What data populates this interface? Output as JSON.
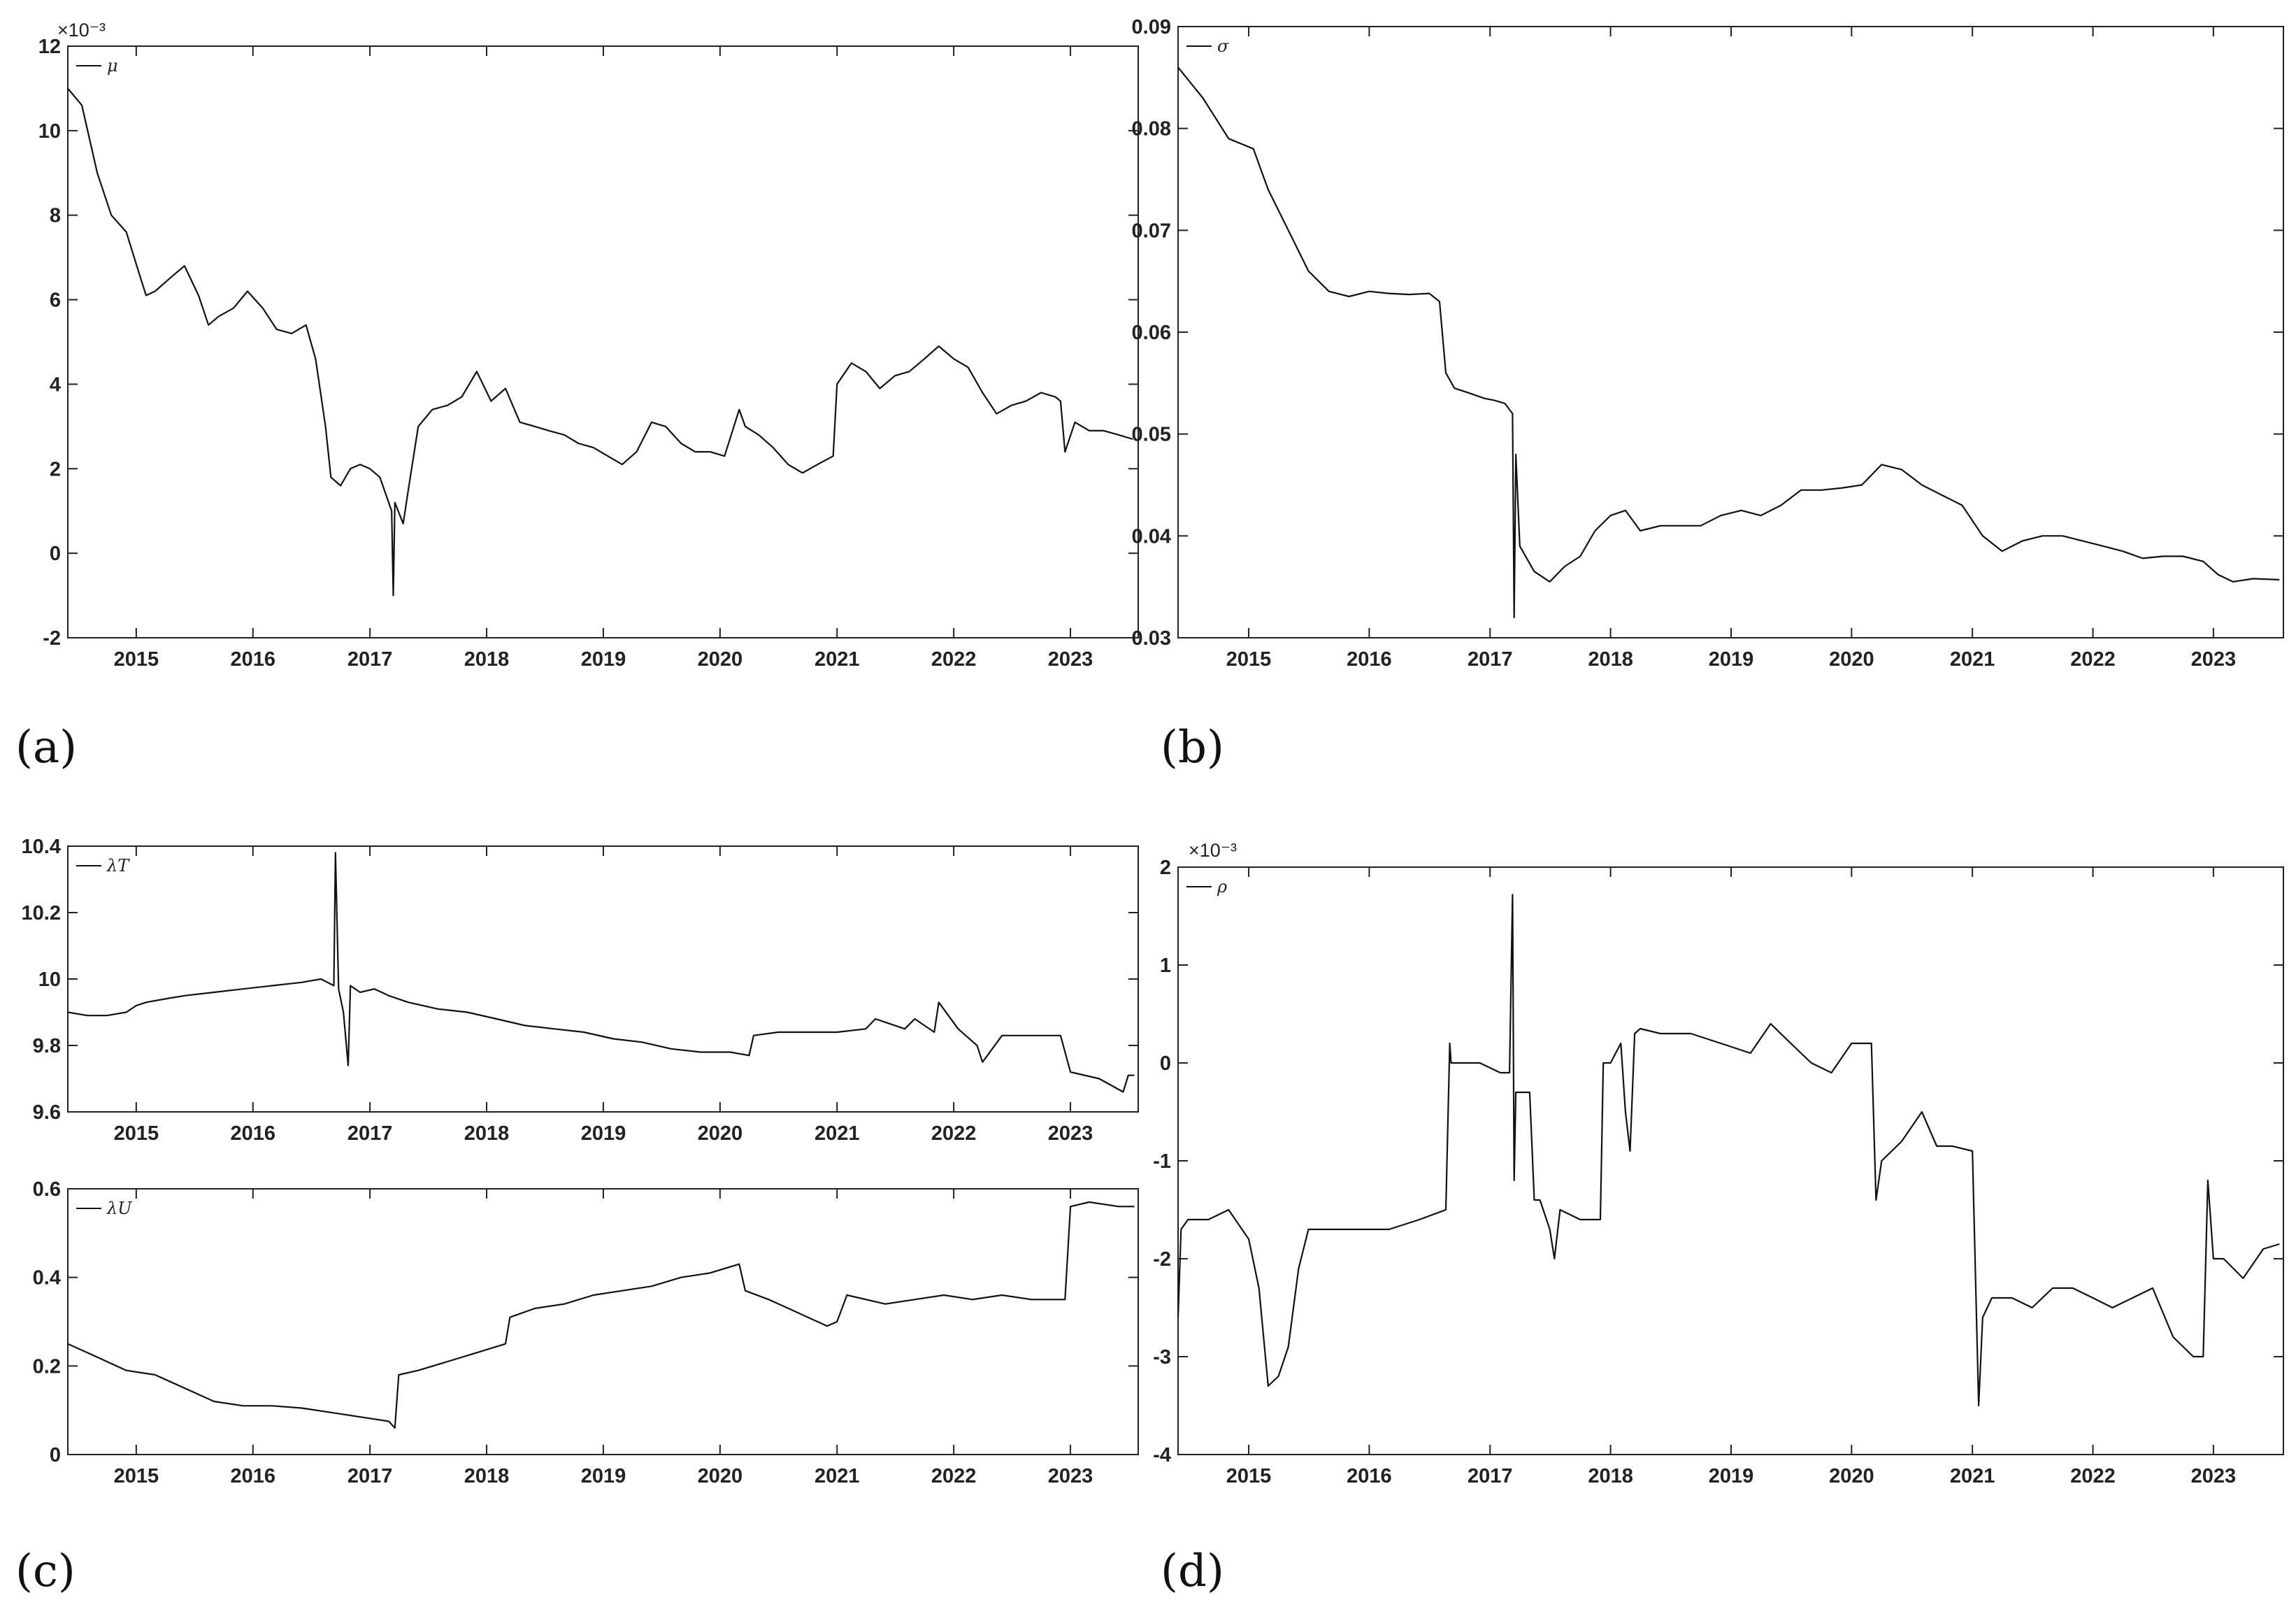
{
  "chart_data": [
    {
      "type": "line",
      "panel_label": "(a)",
      "exponent_label": "×10⁻³",
      "legend": "μ",
      "xlim": [
        "2014-06-01",
        "2023-08-01"
      ],
      "ylim": [
        -2,
        12
      ],
      "y_ticks": [
        "-2",
        "0",
        "2",
        "4",
        "6",
        "8",
        "10",
        "12"
      ],
      "x_ticks": [
        "2015",
        "2016",
        "2017",
        "2018",
        "2019",
        "2020",
        "2021",
        "2022",
        "2023"
      ],
      "series": [
        {
          "x": [
            "2014-06-01",
            "2014-07-15",
            "2014-09-01",
            "2014-10-15",
            "2014-12-01",
            "2015-01-15",
            "2015-02-01",
            "2015-03-01",
            "2015-04-15",
            "2015-06-01",
            "2015-07-15",
            "2015-08-15",
            "2015-09-15",
            "2015-11-01",
            "2015-12-15",
            "2016-02-01",
            "2016-03-15",
            "2016-05-01",
            "2016-06-15",
            "2016-07-15",
            "2016-08-15",
            "2016-09-01",
            "2016-10-01",
            "2016-11-01",
            "2016-12-01",
            "2017-01-01",
            "2017-02-01",
            "2017-03-10",
            "2017-03-15",
            "2017-03-20",
            "2017-04-15",
            "2017-05-01",
            "2017-06-01",
            "2017-07-15",
            "2017-09-01",
            "2017-10-15",
            "2017-12-01",
            "2018-01-15",
            "2018-03-01",
            "2018-04-15",
            "2018-06-01",
            "2018-07-15",
            "2018-09-01",
            "2018-10-15",
            "2018-12-01",
            "2019-01-15",
            "2019-03-01",
            "2019-04-15",
            "2019-06-01",
            "2019-07-15",
            "2019-09-01",
            "2019-10-15",
            "2019-12-01",
            "2020-01-15",
            "2020-03-01",
            "2020-03-20",
            "2020-05-01",
            "2020-06-15",
            "2020-08-01",
            "2020-09-15",
            "2020-11-01",
            "2020-12-20",
            "2021-01-01",
            "2021-02-15",
            "2021-04-01",
            "2021-05-15",
            "2021-07-01",
            "2021-08-15",
            "2021-10-01",
            "2021-11-15",
            "2022-01-01",
            "2022-02-15",
            "2022-04-01",
            "2022-05-15",
            "2022-07-01",
            "2022-08-15",
            "2022-10-01",
            "2022-11-15",
            "2022-12-01",
            "2022-12-15",
            "2023-01-15",
            "2023-03-01",
            "2023-04-15",
            "2023-06-01",
            "2023-07-15"
          ],
          "y": [
            11.0,
            10.6,
            9.0,
            8.0,
            7.6,
            6.5,
            6.1,
            6.2,
            6.5,
            6.8,
            6.1,
            5.4,
            5.6,
            5.8,
            6.2,
            5.8,
            5.3,
            5.2,
            5.4,
            4.6,
            3.0,
            1.8,
            1.6,
            2.0,
            2.1,
            2.0,
            1.8,
            1.0,
            -1.0,
            1.2,
            0.7,
            1.5,
            3.0,
            3.4,
            3.5,
            3.7,
            4.3,
            3.6,
            3.9,
            3.1,
            3.0,
            2.9,
            2.8,
            2.6,
            2.5,
            2.3,
            2.1,
            2.4,
            3.1,
            3.0,
            2.6,
            2.4,
            2.4,
            2.3,
            3.4,
            3.0,
            2.8,
            2.5,
            2.1,
            1.9,
            2.1,
            2.3,
            4.0,
            4.5,
            4.3,
            3.9,
            4.2,
            4.3,
            4.6,
            4.9,
            4.6,
            4.4,
            3.8,
            3.3,
            3.5,
            3.6,
            3.8,
            3.7,
            3.6,
            2.4,
            3.1,
            2.9,
            2.9,
            2.8,
            2.7
          ]
        }
      ]
    },
    {
      "type": "line",
      "panel_label": "(b)",
      "legend": "σ",
      "xlim": [
        "2014-06-01",
        "2023-08-01"
      ],
      "ylim": [
        0.03,
        0.09
      ],
      "y_ticks": [
        "0.03",
        "0.04",
        "0.05",
        "0.06",
        "0.07",
        "0.08",
        "0.09"
      ],
      "x_ticks": [
        "2015",
        "2016",
        "2017",
        "2018",
        "2019",
        "2020",
        "2021",
        "2022",
        "2023"
      ],
      "series": [
        {
          "x": [
            "2014-06-01",
            "2014-08-15",
            "2014-11-01",
            "2015-01-15",
            "2015-03-01",
            "2015-05-01",
            "2015-07-01",
            "2015-09-01",
            "2015-11-01",
            "2016-01-01",
            "2016-03-01",
            "2016-05-01",
            "2016-07-01",
            "2016-08-01",
            "2016-08-20",
            "2016-09-15",
            "2016-11-01",
            "2016-12-15",
            "2017-01-15",
            "2017-02-15",
            "2017-03-10",
            "2017-03-15",
            "2017-03-20",
            "2017-04-01",
            "2017-05-15",
            "2017-07-01",
            "2017-08-15",
            "2017-10-01",
            "2017-11-15",
            "2018-01-01",
            "2018-02-15",
            "2018-04-01",
            "2018-06-01",
            "2018-08-01",
            "2018-10-01",
            "2018-12-01",
            "2019-02-01",
            "2019-04-01",
            "2019-06-01",
            "2019-08-01",
            "2019-10-01",
            "2019-12-01",
            "2020-02-01",
            "2020-04-01",
            "2020-06-01",
            "2020-08-01",
            "2020-10-01",
            "2020-12-01",
            "2021-02-01",
            "2021-04-01",
            "2021-06-01",
            "2021-08-01",
            "2021-10-01",
            "2021-12-01",
            "2022-02-01",
            "2022-04-01",
            "2022-06-01",
            "2022-08-01",
            "2022-10-01",
            "2022-12-01",
            "2023-01-15",
            "2023-03-01",
            "2023-05-01",
            "2023-07-20"
          ],
          "y": [
            0.086,
            0.083,
            0.079,
            0.078,
            0.074,
            0.07,
            0.066,
            0.064,
            0.0635,
            0.064,
            0.0638,
            0.0637,
            0.0638,
            0.063,
            0.056,
            0.0545,
            0.054,
            0.0535,
            0.0533,
            0.053,
            0.052,
            0.032,
            0.048,
            0.039,
            0.0365,
            0.0355,
            0.037,
            0.038,
            0.0405,
            0.042,
            0.0425,
            0.0405,
            0.041,
            0.041,
            0.041,
            0.042,
            0.0425,
            0.042,
            0.043,
            0.0445,
            0.0445,
            0.0447,
            0.045,
            0.047,
            0.0465,
            0.045,
            0.044,
            0.043,
            0.04,
            0.0385,
            0.0395,
            0.04,
            0.04,
            0.0395,
            0.039,
            0.0385,
            0.0378,
            0.038,
            0.038,
            0.0375,
            0.0362,
            0.0355,
            0.0358,
            0.0357
          ]
        }
      ]
    },
    {
      "type": "line",
      "panel_label": "(c)",
      "legend": "λT",
      "xlim": [
        "2014-06-01",
        "2023-08-01"
      ],
      "ylim": [
        9.6,
        10.4
      ],
      "y_ticks": [
        "9.6",
        "9.8",
        "10",
        "10.2",
        "10.4"
      ],
      "x_ticks": [
        "2015",
        "2016",
        "2017",
        "2018",
        "2019",
        "2020",
        "2021",
        "2022",
        "2023"
      ],
      "series": [
        {
          "x": [
            "2014-06-01",
            "2014-08-01",
            "2014-10-01",
            "2014-12-01",
            "2015-01-01",
            "2015-02-01",
            "2015-04-01",
            "2015-06-01",
            "2015-09-01",
            "2015-12-01",
            "2016-03-01",
            "2016-06-01",
            "2016-08-01",
            "2016-09-10",
            "2016-09-15",
            "2016-09-25",
            "2016-10-10",
            "2016-10-25",
            "2016-11-01",
            "2016-12-01",
            "2017-01-15",
            "2017-03-01",
            "2017-05-01",
            "2017-08-01",
            "2017-11-01",
            "2018-02-01",
            "2018-05-01",
            "2018-08-01",
            "2018-11-01",
            "2019-02-01",
            "2019-05-01",
            "2019-08-01",
            "2019-11-01",
            "2020-02-01",
            "2020-04-01",
            "2020-04-15",
            "2020-07-01",
            "2020-10-01",
            "2021-01-01",
            "2021-04-01",
            "2021-05-01",
            "2021-08-01",
            "2021-09-01",
            "2021-11-01",
            "2021-11-15",
            "2022-01-15",
            "2022-03-15",
            "2022-04-01",
            "2022-06-01",
            "2022-09-01",
            "2022-12-01",
            "2023-01-01",
            "2023-04-01",
            "2023-06-15",
            "2023-07-01",
            "2023-07-20"
          ],
          "y": [
            9.9,
            9.89,
            9.89,
            9.9,
            9.92,
            9.93,
            9.94,
            9.95,
            9.96,
            9.97,
            9.98,
            9.99,
            10.0,
            9.98,
            10.38,
            9.97,
            9.9,
            9.74,
            9.98,
            9.96,
            9.97,
            9.95,
            9.93,
            9.91,
            9.9,
            9.88,
            9.86,
            9.85,
            9.84,
            9.82,
            9.81,
            9.79,
            9.78,
            9.78,
            9.77,
            9.83,
            9.84,
            9.84,
            9.84,
            9.85,
            9.88,
            9.85,
            9.88,
            9.84,
            9.93,
            9.85,
            9.8,
            9.75,
            9.83,
            9.83,
            9.83,
            9.72,
            9.7,
            9.66,
            9.71,
            9.71
          ]
        }
      ]
    },
    {
      "type": "line",
      "panel_label": "(c)",
      "legend": "λU",
      "xlim": [
        "2014-06-01",
        "2023-08-01"
      ],
      "ylim": [
        0,
        0.6
      ],
      "y_ticks": [
        "0",
        "0.2",
        "0.4",
        "0.6"
      ],
      "x_ticks": [
        "2015",
        "2016",
        "2017",
        "2018",
        "2019",
        "2020",
        "2021",
        "2022",
        "2023"
      ],
      "series": [
        {
          "x": [
            "2014-06-01",
            "2014-09-01",
            "2014-12-01",
            "2015-03-01",
            "2015-06-01",
            "2015-09-01",
            "2015-12-01",
            "2016-03-01",
            "2016-06-01",
            "2016-09-01",
            "2016-12-01",
            "2017-03-01",
            "2017-03-20",
            "2017-04-01",
            "2017-06-01",
            "2017-09-01",
            "2017-12-01",
            "2018-03-01",
            "2018-03-15",
            "2018-06-01",
            "2018-09-01",
            "2018-12-01",
            "2019-03-01",
            "2019-06-01",
            "2019-09-01",
            "2019-12-01",
            "2020-03-01",
            "2020-03-20",
            "2020-06-01",
            "2020-09-01",
            "2020-12-01",
            "2021-01-01",
            "2021-02-01",
            "2021-06-01",
            "2021-09-01",
            "2021-12-01",
            "2022-03-01",
            "2022-06-01",
            "2022-09-01",
            "2022-12-01",
            "2022-12-15",
            "2023-01-01",
            "2023-03-01",
            "2023-06-01",
            "2023-07-20"
          ],
          "y": [
            0.25,
            0.22,
            0.19,
            0.18,
            0.15,
            0.12,
            0.11,
            0.11,
            0.105,
            0.095,
            0.085,
            0.075,
            0.06,
            0.18,
            0.19,
            0.21,
            0.23,
            0.25,
            0.31,
            0.33,
            0.34,
            0.36,
            0.37,
            0.38,
            0.4,
            0.41,
            0.43,
            0.37,
            0.35,
            0.32,
            0.29,
            0.3,
            0.36,
            0.34,
            0.35,
            0.36,
            0.35,
            0.36,
            0.35,
            0.35,
            0.35,
            0.56,
            0.57,
            0.56,
            0.56
          ]
        }
      ]
    },
    {
      "type": "line",
      "panel_label": "(d)",
      "exponent_label": "×10⁻³",
      "legend": "ρ",
      "xlim": [
        "2014-06-01",
        "2023-08-01"
      ],
      "ylim": [
        -4,
        2
      ],
      "y_ticks": [
        "-4",
        "-3",
        "-2",
        "-1",
        "0",
        "1",
        "2"
      ],
      "x_ticks": [
        "2015",
        "2016",
        "2017",
        "2018",
        "2019",
        "2020",
        "2021",
        "2022",
        "2023"
      ],
      "series": [
        {
          "x": [
            "2014-06-01",
            "2014-06-10",
            "2014-07-01",
            "2014-09-01",
            "2014-11-01",
            "2015-01-01",
            "2015-02-01",
            "2015-03-01",
            "2015-04-01",
            "2015-05-01",
            "2015-06-01",
            "2015-07-01",
            "2015-09-01",
            "2015-12-01",
            "2016-03-01",
            "2016-06-01",
            "2016-08-20",
            "2016-09-01",
            "2016-09-05",
            "2016-10-01",
            "2016-12-01",
            "2017-02-01",
            "2017-03-01",
            "2017-03-10",
            "2017-03-15",
            "2017-03-20",
            "2017-04-01",
            "2017-05-01",
            "2017-05-15",
            "2017-06-01",
            "2017-07-01",
            "2017-07-15",
            "2017-08-01",
            "2017-10-01",
            "2017-12-01",
            "2017-12-10",
            "2018-01-01",
            "2018-02-01",
            "2018-02-15",
            "2018-03-01",
            "2018-03-15",
            "2018-04-01",
            "2018-06-01",
            "2018-09-01",
            "2018-12-01",
            "2019-03-01",
            "2019-05-01",
            "2019-07-01",
            "2019-09-01",
            "2019-11-01",
            "2020-01-01",
            "2020-03-01",
            "2020-03-15",
            "2020-04-01",
            "2020-06-01",
            "2020-08-01",
            "2020-09-15",
            "2020-11-01",
            "2021-01-01",
            "2021-01-20",
            "2021-02-01",
            "2021-03-01",
            "2021-05-01",
            "2021-07-01",
            "2021-09-01",
            "2021-11-01",
            "2022-01-01",
            "2022-03-01",
            "2022-05-01",
            "2022-07-01",
            "2022-09-01",
            "2022-11-01",
            "2022-12-01",
            "2022-12-15",
            "2023-01-01",
            "2023-02-01",
            "2023-04-01",
            "2023-06-01",
            "2023-07-20"
          ],
          "y": [
            -2.6,
            -1.7,
            -1.6,
            -1.6,
            -1.5,
            -1.8,
            -2.3,
            -3.3,
            -3.2,
            -2.9,
            -2.1,
            -1.7,
            -1.7,
            -1.7,
            -1.7,
            -1.6,
            -1.5,
            0.2,
            0.0,
            0.0,
            0.0,
            -0.1,
            -0.1,
            1.72,
            -1.2,
            -0.3,
            -0.3,
            -0.3,
            -1.4,
            -1.4,
            -1.7,
            -2.0,
            -1.5,
            -1.6,
            -1.6,
            0.0,
            0.0,
            0.2,
            -0.5,
            -0.9,
            0.3,
            0.35,
            0.3,
            0.3,
            0.2,
            0.1,
            0.4,
            0.2,
            0.0,
            -0.1,
            0.2,
            0.2,
            -1.4,
            -1.0,
            -0.8,
            -0.5,
            -0.85,
            -0.85,
            -0.9,
            -3.5,
            -2.6,
            -2.4,
            -2.4,
            -2.5,
            -2.3,
            -2.3,
            -2.4,
            -2.5,
            -2.4,
            -2.3,
            -2.8,
            -3.0,
            -3.0,
            -1.2,
            -2.0,
            -2.0,
            -2.2,
            -1.9,
            -1.85
          ]
        }
      ]
    }
  ]
}
